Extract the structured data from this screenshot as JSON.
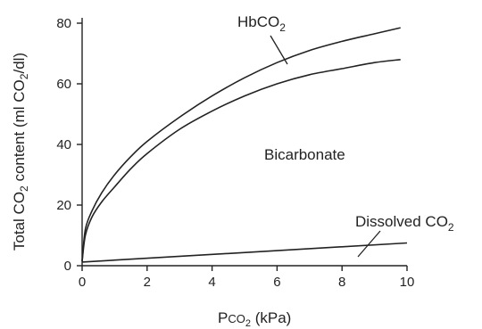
{
  "chart_data": {
    "type": "line",
    "ylabel": {
      "pre": "Total CO",
      "sub": "2",
      "post": " content (ml CO",
      "sub2": "2",
      "post2": "/dl)"
    },
    "xlabel": {
      "pre": "P",
      "small": "CO",
      "sub": "2",
      "post": " (kPa)"
    },
    "xlim": [
      0,
      10
    ],
    "ylim": [
      0,
      80
    ],
    "xticks": [
      "0",
      "2",
      "4",
      "6",
      "8",
      "10"
    ],
    "yticks": [
      "0",
      "20",
      "40",
      "60",
      "80"
    ],
    "series": [
      {
        "x": [
          0,
          0.1,
          0.3,
          0.6,
          1,
          1.5,
          2,
          3,
          4,
          5,
          6,
          7,
          8,
          9,
          9.8
        ],
        "y": [
          1.5,
          10,
          16,
          21,
          26,
          32,
          37,
          45,
          51,
          56,
          60,
          63,
          65,
          67,
          68
        ]
      },
      {
        "x": [
          0,
          0.1,
          0.3,
          0.6,
          1,
          1.5,
          2,
          3,
          4,
          5,
          6,
          7,
          8,
          9,
          9.8
        ],
        "y": [
          1.5,
          12,
          18,
          24,
          30,
          36,
          41,
          49,
          56,
          62,
          67,
          71,
          74,
          76.5,
          78.5
        ]
      },
      {
        "x": [
          0,
          10
        ],
        "y": [
          1.2,
          7.5
        ]
      }
    ],
    "annotations": [
      {
        "pre": "HbCO",
        "sub": "2"
      },
      {
        "pre": "Bicarbonate"
      },
      {
        "pre": "Dissolved CO",
        "sub": "2"
      }
    ]
  }
}
